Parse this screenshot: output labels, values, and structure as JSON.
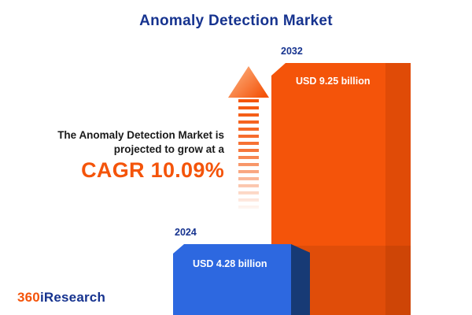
{
  "title": "Anomaly Detection Market",
  "description": {
    "line1": "The Anomaly Detection Market is",
    "line2": "projected to grow at a",
    "cagr": "CAGR 10.09%"
  },
  "logo": {
    "part1": "360",
    "part2": "iResearch"
  },
  "chart_data": {
    "type": "bar",
    "title": "Anomaly Detection Market",
    "categories": [
      "2024",
      "2032"
    ],
    "values": [
      4.28,
      9.25
    ],
    "value_labels": [
      "USD 4.28 billion",
      "USD 9.25 billion"
    ],
    "unit": "USD billion",
    "cagr_percent": 10.09,
    "legend": "none",
    "grid": false,
    "colors": {
      "bar_2024_front": "#2d68e0",
      "bar_2024_side": "#173a75",
      "bar_2032_front": "#f4540a",
      "bar_2032_side": "#e04b07",
      "title_navy": "#16338f",
      "accent_orange": "#f4540a"
    }
  }
}
